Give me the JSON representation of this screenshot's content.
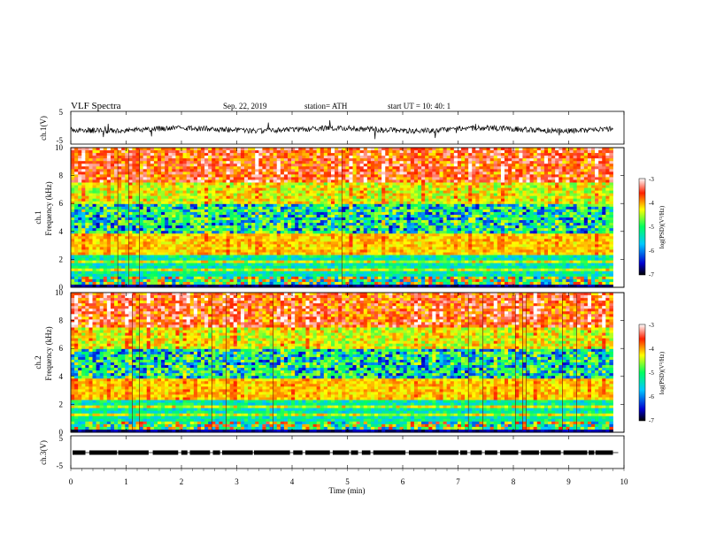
{
  "header": {
    "title": "VLF  Spectra",
    "date": "Sep. 22, 2019",
    "station": "station= ATH",
    "start": "start  UT  =    10: 40: 1"
  },
  "colorscale": {
    "label": "log(PSD)(V²/Hz)",
    "ticks": [
      "-3",
      "-4",
      "-5",
      "-6",
      "-7"
    ],
    "colors": [
      "#000000",
      "#0000d0",
      "#00c8ff",
      "#00ff60",
      "#ffff00",
      "#ff2000",
      "#ffffff"
    ]
  },
  "chart_data": {
    "type": "heatmap",
    "title": "VLF  Spectra",
    "xlabel": "Time  (min)",
    "xlim": [
      0,
      10
    ],
    "xticks": [
      "0",
      "1",
      "2",
      "3",
      "4",
      "5",
      "6",
      "7",
      "8",
      "9",
      "10"
    ],
    "panels": [
      {
        "kind": "waveform",
        "ylabel": "ch.1(V)",
        "ylim": [
          -5,
          5
        ],
        "yticks": [
          "5",
          "-5"
        ],
        "trace": "noisy signal near -0.5 V across full record"
      },
      {
        "kind": "spectrogram",
        "ylabel_top": "ch.1",
        "ylabel": "Frequency  (kHz)",
        "ylim": [
          0,
          10
        ],
        "yticks": [
          "10",
          "8",
          "6",
          "4",
          "2",
          "0"
        ],
        "clim": [
          -7,
          -3
        ]
      },
      {
        "kind": "spectrogram",
        "ylabel_top": "ch.2",
        "ylabel": "Frequency  (kHz)",
        "ylim": [
          0,
          10
        ],
        "yticks": [
          "10",
          "8",
          "6",
          "4",
          "2",
          "0"
        ],
        "clim": [
          -7,
          -3
        ]
      },
      {
        "kind": "waveform",
        "ylabel": "ch.3(V)",
        "ylim": [
          -5,
          5
        ],
        "yticks": [
          "5",
          "-5"
        ],
        "trace": "pulsed signal near -1 V"
      }
    ],
    "data_end_min": 9.8
  }
}
